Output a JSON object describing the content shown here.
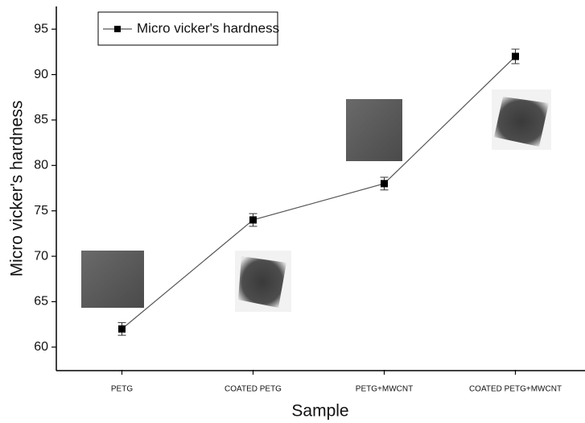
{
  "chart_data": {
    "type": "line",
    "x_label": "Sample",
    "y_label": "Micro vicker's hardness",
    "categories": [
      "PETG",
      "COATED PETG",
      "PETG+MWCNT",
      "COATED PETG+MWCNT"
    ],
    "series": [
      {
        "name": "Micro vicker's hardness",
        "color": "#000000",
        "values": [
          62,
          74,
          78,
          92
        ],
        "errors": [
          0.7,
          0.7,
          0.7,
          0.8
        ]
      }
    ],
    "ylim": [
      57.5,
      97.5
    ],
    "yticks": [
      60,
      65,
      70,
      75,
      80,
      85,
      90,
      95
    ],
    "legend": "upper left",
    "grid": false
  }
}
